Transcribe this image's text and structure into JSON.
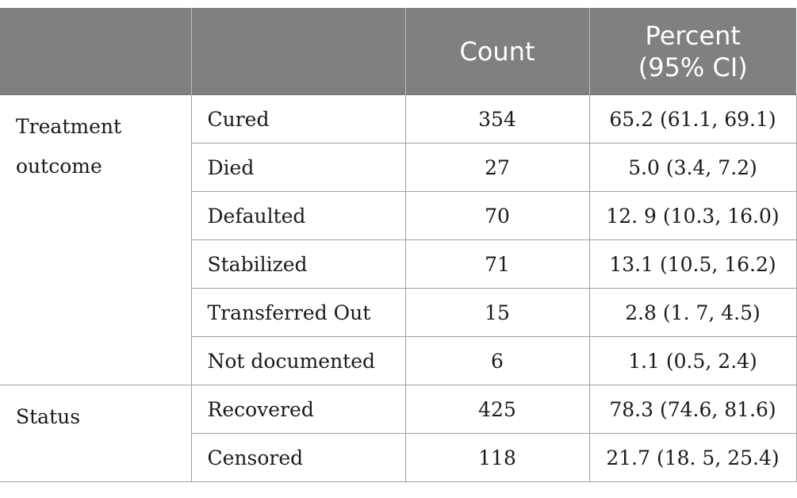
{
  "table": {
    "headers": {
      "col1": "",
      "col2": "",
      "count": "Count",
      "percent_line1": "Percent",
      "percent_line2": "(95% CI)"
    },
    "groups": [
      {
        "label": "Treatment outcome",
        "rows": [
          {
            "item": "Cured",
            "count": "354",
            "percent": "65.2 (61.1, 69.1)"
          },
          {
            "item": "Died",
            "count": "27",
            "percent": "5.0 (3.4, 7.2)"
          },
          {
            "item": "Defaulted",
            "count": "70",
            "percent": "12. 9 (10.3, 16.0)"
          },
          {
            "item": "Stabilized",
            "count": "71",
            "percent": "13.1 (10.5, 16.2)"
          },
          {
            "item": "Transferred Out",
            "count": "15",
            "percent": "2.8 (1. 7, 4.5)"
          },
          {
            "item": "Not documented",
            "count": "6",
            "percent": "1.1 (0.5, 2.4)"
          }
        ]
      },
      {
        "label": "Status",
        "rows": [
          {
            "item": "Recovered",
            "count": "425",
            "percent": "78.3 (74.6, 81.6)"
          },
          {
            "item": "Censored",
            "count": "118",
            "percent": "21.7 (18. 5, 25.4)"
          }
        ]
      }
    ]
  }
}
